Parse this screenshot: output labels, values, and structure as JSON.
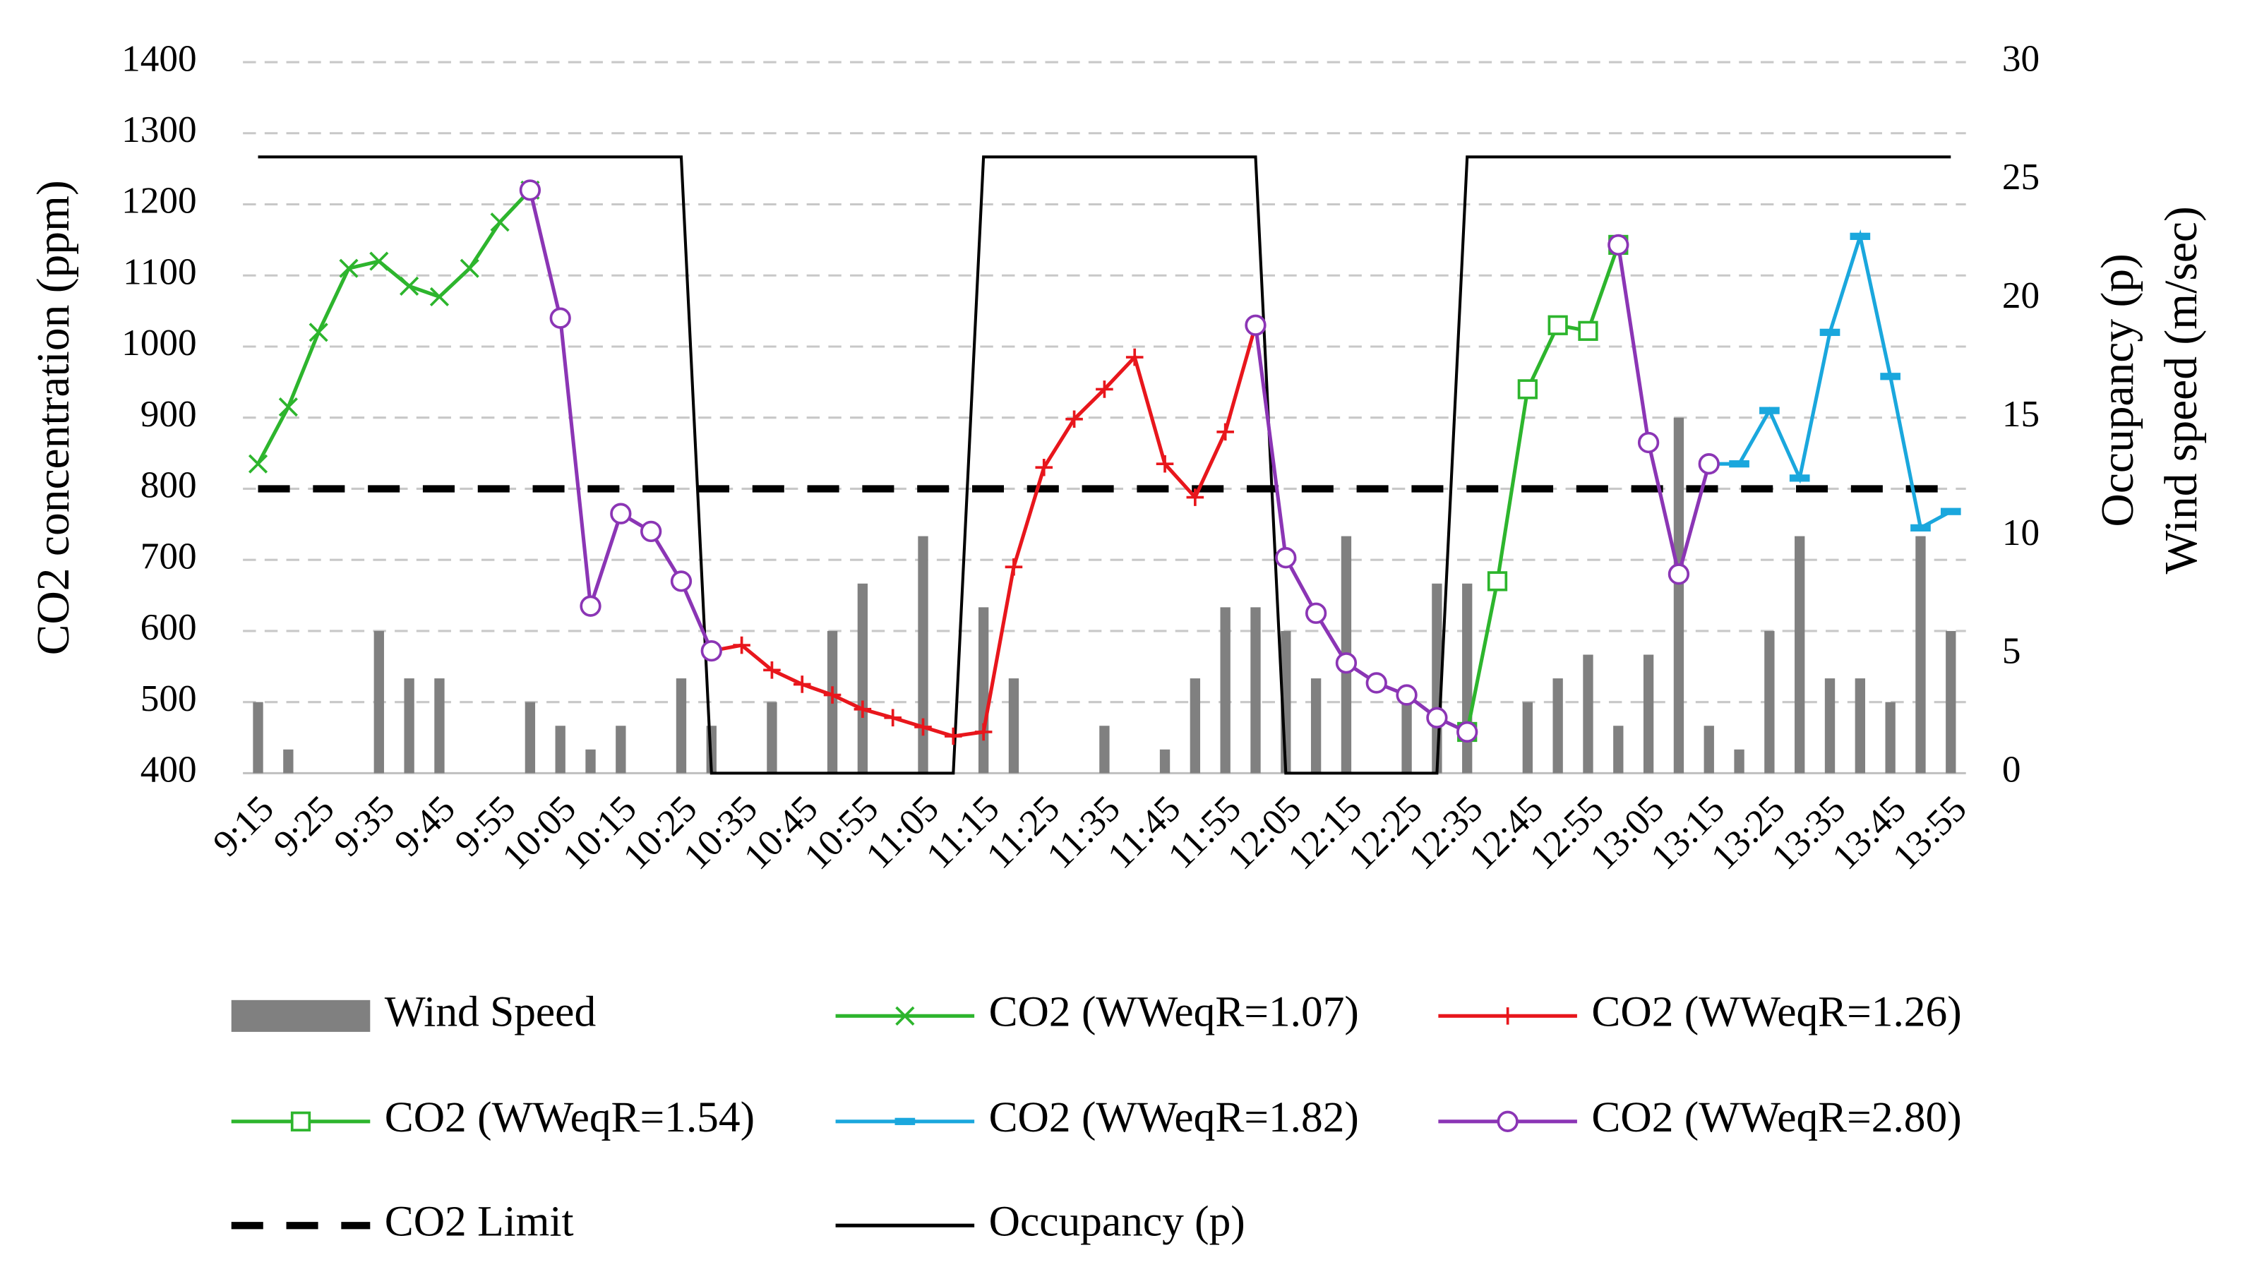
{
  "chart_data": {
    "type": "bar-line",
    "y_label": "CO2 concentration (ppm)",
    "y2_label": [
      "Occupancy (p)",
      "Wind speed  (m/sec)"
    ],
    "categories": [
      "9:15",
      null,
      "9:25",
      null,
      "9:35",
      null,
      "9:45",
      null,
      "9:55",
      null,
      "10:05",
      null,
      "10:15",
      null,
      "10:25",
      null,
      "10:35",
      null,
      "10:45",
      null,
      "10:55",
      null,
      "11:05",
      null,
      "11:15",
      null,
      "11:25",
      null,
      "11:35",
      null,
      "11:45",
      null,
      "11:55",
      null,
      "12:05",
      null,
      "12:15",
      null,
      "12:25",
      null,
      "12:35",
      null,
      "12:45",
      null,
      "12:55",
      null,
      "13:05",
      null,
      "13:15",
      null,
      "13:25",
      null,
      "13:35",
      null,
      "13:45",
      null,
      "13:55"
    ],
    "ylim": [
      400,
      1400
    ],
    "yticks": [
      400,
      500,
      600,
      700,
      800,
      900,
      1000,
      1100,
      1200,
      1300,
      1400
    ],
    "y2lim": [
      0,
      30
    ],
    "y2ticks": [
      0,
      5,
      10,
      15,
      20,
      25,
      30
    ],
    "grid": true,
    "legend": "bottom",
    "series": [
      {
        "name": "Wind Speed",
        "type": "bar",
        "axis": "y2",
        "color": "#808080",
        "values": [
          3,
          1,
          0,
          0,
          6,
          4,
          4,
          0,
          0,
          3,
          2,
          1,
          2,
          0,
          4,
          2,
          0,
          3,
          0,
          6,
          8,
          0,
          10,
          0,
          7,
          4,
          0,
          0,
          2,
          0,
          1,
          4,
          7,
          7,
          6,
          4,
          10,
          0,
          3,
          8,
          8,
          0,
          3,
          4,
          5,
          2,
          5,
          15,
          2,
          1,
          6,
          10,
          4,
          4,
          3,
          10,
          6
        ]
      },
      {
        "name": "CO2 (WWeqR=1.07)",
        "type": "line",
        "marker": "x",
        "color": "#2db52d",
        "values": [
          835,
          915,
          1020,
          1110,
          1120,
          1085,
          1070,
          1110,
          1175,
          1220,
          null,
          null,
          null,
          null,
          null,
          null,
          null,
          null,
          null,
          null,
          null,
          null,
          null,
          null,
          null,
          null,
          null,
          null,
          null,
          null,
          null,
          null,
          null,
          null,
          null,
          null,
          null,
          null,
          null,
          null,
          null,
          null,
          null,
          null,
          null,
          null,
          null,
          null,
          null,
          null,
          null,
          null,
          null,
          null,
          null,
          null,
          null
        ]
      },
      {
        "name": "CO2 (WWeqR=1.26)",
        "type": "line",
        "marker": "plus",
        "color": "#e8161c",
        "values": [
          null,
          null,
          null,
          null,
          null,
          null,
          null,
          null,
          null,
          null,
          null,
          null,
          null,
          null,
          null,
          572,
          580,
          545,
          525,
          510,
          490,
          478,
          465,
          452,
          458,
          690,
          830,
          898,
          940,
          985,
          835,
          788,
          880,
          1030,
          null,
          null,
          null,
          null,
          null,
          null,
          null,
          null,
          null,
          null,
          null,
          null,
          null,
          null,
          null,
          null,
          null,
          null,
          null,
          null,
          null,
          null,
          null
        ]
      },
      {
        "name": "CO2 (WWeqR=1.54)",
        "type": "line",
        "marker": "square",
        "color": "#2db52d",
        "values": [
          null,
          null,
          null,
          null,
          null,
          null,
          null,
          null,
          null,
          null,
          null,
          null,
          null,
          null,
          null,
          null,
          null,
          null,
          null,
          null,
          null,
          null,
          null,
          null,
          null,
          null,
          null,
          null,
          null,
          null,
          null,
          null,
          null,
          null,
          null,
          null,
          null,
          null,
          null,
          null,
          458,
          670,
          940,
          1030,
          1022,
          1143,
          null,
          null,
          null,
          null,
          null,
          null,
          null,
          null,
          null,
          null,
          null
        ]
      },
      {
        "name": "CO2 (WWeqR=1.82)",
        "type": "line",
        "marker": "dash",
        "color": "#1aa7dd",
        "values": [
          null,
          null,
          null,
          null,
          null,
          null,
          null,
          null,
          null,
          null,
          null,
          null,
          null,
          null,
          null,
          null,
          null,
          null,
          null,
          null,
          null,
          null,
          null,
          null,
          null,
          null,
          null,
          null,
          null,
          null,
          null,
          null,
          null,
          null,
          null,
          null,
          null,
          null,
          null,
          null,
          null,
          null,
          null,
          null,
          null,
          null,
          null,
          null,
          835,
          835,
          910,
          815,
          1020,
          1155,
          958,
          745,
          768
        ]
      },
      {
        "name": "CO2 (WWeqR=2.80)",
        "type": "line",
        "marker": "circle",
        "color": "#8b35b5",
        "values": [
          null,
          null,
          null,
          null,
          null,
          null,
          null,
          null,
          null,
          1220,
          1040,
          635,
          765,
          740,
          670,
          572,
          null,
          null,
          null,
          null,
          null,
          null,
          null,
          null,
          null,
          null,
          null,
          null,
          null,
          null,
          null,
          null,
          null,
          1030,
          703,
          625,
          555,
          527,
          510,
          478,
          458,
          null,
          null,
          null,
          null,
          1143,
          865,
          680,
          835,
          null,
          null,
          null,
          null,
          null,
          null,
          null,
          null
        ]
      },
      {
        "name": "CO2 Limit",
        "type": "line",
        "dash": true,
        "color": "#000000",
        "values": [
          800,
          800,
          800,
          800,
          800,
          800,
          800,
          800,
          800,
          800,
          800,
          800,
          800,
          800,
          800,
          800,
          800,
          800,
          800,
          800,
          800,
          800,
          800,
          800,
          800,
          800,
          800,
          800,
          800,
          800,
          800,
          800,
          800,
          800,
          800,
          800,
          800,
          800,
          800,
          800,
          800,
          800,
          800,
          800,
          800,
          800,
          800,
          800,
          800,
          800,
          800,
          800,
          800,
          800,
          800,
          800,
          800
        ]
      },
      {
        "name": "Occupancy (p)",
        "type": "line",
        "axis": "y2",
        "color": "#000000",
        "values": [
          26,
          26,
          26,
          26,
          26,
          26,
          26,
          26,
          26,
          26,
          26,
          26,
          26,
          26,
          26,
          0,
          0,
          0,
          0,
          0,
          0,
          0,
          0,
          0,
          26,
          26,
          26,
          26,
          26,
          26,
          26,
          26,
          26,
          26,
          0,
          0,
          0,
          0,
          0,
          0,
          26,
          26,
          26,
          26,
          26,
          26,
          26,
          26,
          26,
          26,
          26,
          26,
          26,
          26,
          26,
          26,
          26
        ]
      }
    ]
  }
}
